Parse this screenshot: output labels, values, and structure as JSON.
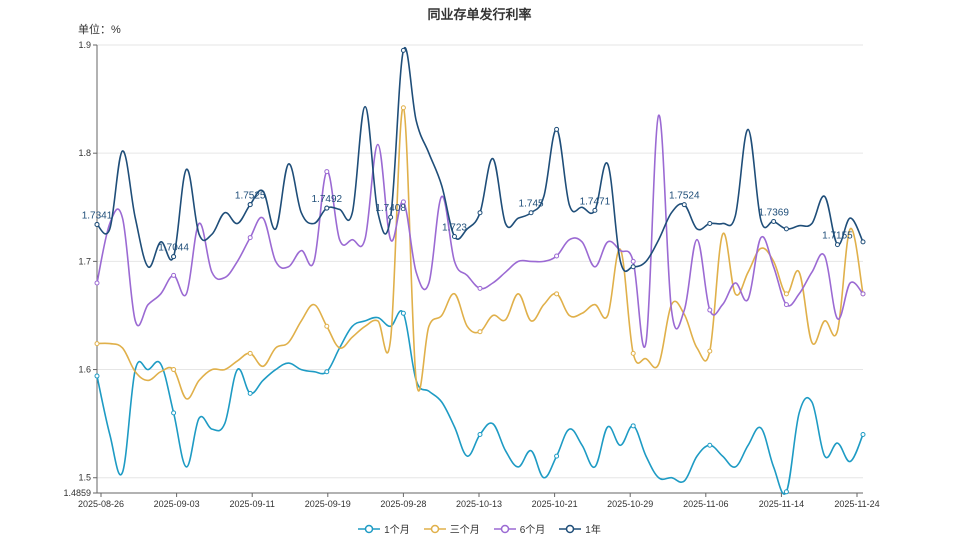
{
  "chart_data": {
    "type": "line",
    "title": "同业存单发行利率",
    "unit_label": "单位：%",
    "x_ticks": [
      "2025-08-26",
      "2025-09-03",
      "2025-09-11",
      "2025-09-19",
      "2025-09-28",
      "2025-10-13",
      "2025-10-21",
      "2025-10-29",
      "2025-11-06",
      "2025-11-14",
      "2025-11-24"
    ],
    "y_ticks": [
      "1.4859",
      "1.5",
      "1.6",
      "1.7",
      "1.8",
      "1.9"
    ],
    "ylim": [
      1.4859,
      1.9
    ],
    "grid": true,
    "legend_position": "bottom",
    "series": [
      {
        "name": "1个月",
        "color": "#1e9bc4",
        "values": [
          1.594,
          1.54,
          1.505,
          1.6,
          1.6,
          1.605,
          1.56,
          1.51,
          1.555,
          1.545,
          1.55,
          1.6,
          1.578,
          1.59,
          1.6,
          1.606,
          1.6,
          1.598,
          1.598,
          1.62,
          1.64,
          1.645,
          1.648,
          1.64,
          1.652,
          1.59,
          1.58,
          1.57,
          1.547,
          1.52,
          1.54,
          1.55,
          1.525,
          1.51,
          1.525,
          1.5,
          1.52,
          1.545,
          1.53,
          1.51,
          1.547,
          1.53,
          1.548,
          1.52,
          1.5,
          1.5,
          1.497,
          1.52,
          1.53,
          1.52,
          1.51,
          1.53,
          1.546,
          1.51,
          1.487,
          1.56,
          1.57,
          1.52,
          1.532,
          1.515,
          1.54
        ]
      },
      {
        "name": "三个月",
        "color": "#e0b04a",
        "values": [
          1.624,
          1.624,
          1.62,
          1.598,
          1.59,
          1.598,
          1.6,
          1.573,
          1.59,
          1.6,
          1.6,
          1.608,
          1.615,
          1.603,
          1.62,
          1.625,
          1.645,
          1.66,
          1.64,
          1.62,
          1.63,
          1.64,
          1.645,
          1.628,
          1.842,
          1.59,
          1.64,
          1.65,
          1.67,
          1.64,
          1.635,
          1.65,
          1.646,
          1.67,
          1.645,
          1.66,
          1.67,
          1.65,
          1.652,
          1.66,
          1.65,
          1.711,
          1.615,
          1.61,
          1.605,
          1.66,
          1.651,
          1.62,
          1.617,
          1.725,
          1.67,
          1.69,
          1.712,
          1.7,
          1.67,
          1.69,
          1.625,
          1.645,
          1.636,
          1.73,
          1.67
        ]
      },
      {
        "name": "6个月",
        "color": "#9b6ad3",
        "values": [
          1.68,
          1.735,
          1.74,
          1.645,
          1.66,
          1.67,
          1.687,
          1.67,
          1.735,
          1.69,
          1.685,
          1.7,
          1.722,
          1.74,
          1.7,
          1.695,
          1.71,
          1.7,
          1.783,
          1.72,
          1.72,
          1.721,
          1.808,
          1.72,
          1.755,
          1.69,
          1.68,
          1.76,
          1.7,
          1.687,
          1.675,
          1.68,
          1.69,
          1.7,
          1.7,
          1.7,
          1.705,
          1.72,
          1.718,
          1.695,
          1.718,
          1.71,
          1.7,
          1.625,
          1.835,
          1.655,
          1.655,
          1.72,
          1.655,
          1.66,
          1.68,
          1.665,
          1.722,
          1.695,
          1.66,
          1.67,
          1.69,
          1.705,
          1.647,
          1.68,
          1.67
        ]
      },
      {
        "name": "1年",
        "color": "#1f4e79",
        "values": [
          1.7341,
          1.73,
          1.802,
          1.74,
          1.695,
          1.718,
          1.7044,
          1.785,
          1.725,
          1.725,
          1.745,
          1.735,
          1.7525,
          1.765,
          1.73,
          1.79,
          1.745,
          1.735,
          1.7492,
          1.748,
          1.745,
          1.843,
          1.745,
          1.7408,
          1.895,
          1.83,
          1.8,
          1.77,
          1.723,
          1.73,
          1.745,
          1.795,
          1.735,
          1.74,
          1.745,
          1.76,
          1.822,
          1.752,
          1.75,
          1.7471,
          1.79,
          1.7,
          1.695,
          1.7,
          1.72,
          1.745,
          1.7524,
          1.73,
          1.735,
          1.735,
          1.742,
          1.822,
          1.738,
          1.7369,
          1.73,
          1.733,
          1.735,
          1.76,
          1.7155,
          1.74,
          1.718
        ]
      }
    ],
    "data_labels": [
      {
        "series": 3,
        "index": 0,
        "text": "1.7341"
      },
      {
        "series": 3,
        "index": 6,
        "text": "1.7044"
      },
      {
        "series": 3,
        "index": 12,
        "text": "1.7525"
      },
      {
        "series": 3,
        "index": 18,
        "text": "1.7492"
      },
      {
        "series": 3,
        "index": 23,
        "text": "1.7408"
      },
      {
        "series": 3,
        "index": 28,
        "text": "1.723"
      },
      {
        "series": 3,
        "index": 34,
        "text": "1.745"
      },
      {
        "series": 3,
        "index": 39,
        "text": "1.7471"
      },
      {
        "series": 3,
        "index": 46,
        "text": "1.7524"
      },
      {
        "series": 3,
        "index": 53,
        "text": "1.7369"
      },
      {
        "series": 3,
        "index": 58,
        "text": "1.7155"
      }
    ]
  }
}
